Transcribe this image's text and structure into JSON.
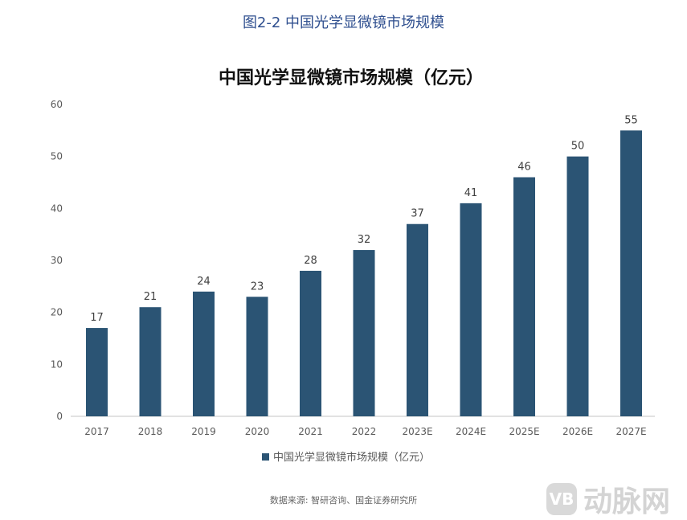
{
  "figure_title": "图2-2 中国光学显微镜市场规模",
  "source": "数据来源: 智研咨询、国金证券研究所",
  "watermark": {
    "badge": "VB",
    "text": "动脉网"
  },
  "colors": {
    "bar": "#2b5474",
    "axis": "#d9d9d9",
    "text": "#595959"
  },
  "chart_data": {
    "type": "bar",
    "title": "中国光学显微镜市场规模（亿元）",
    "categories": [
      "2017",
      "2018",
      "2019",
      "2020",
      "2021",
      "2022",
      "2023E",
      "2024E",
      "2025E",
      "2026E",
      "2027E"
    ],
    "series": [
      {
        "name": "中国光学显微镜市场规模（亿元）",
        "values": [
          17,
          21,
          24,
          23,
          28,
          32,
          37,
          41,
          46,
          50,
          55
        ]
      }
    ],
    "xlabel": "",
    "ylabel": "",
    "ylim": [
      0,
      60
    ],
    "yticks": [
      0,
      10,
      20,
      30,
      40,
      50,
      60
    ],
    "grid": false,
    "legend": "bottom-center",
    "data_labels": true
  }
}
